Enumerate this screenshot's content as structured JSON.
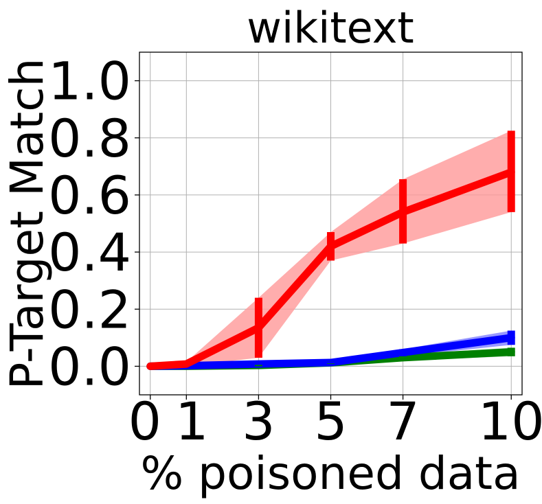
{
  "chart_data": {
    "type": "line",
    "title": "wikitext",
    "xlabel": "% poisoned data",
    "ylabel": "P-Target Match",
    "x": [
      0,
      1,
      3,
      5,
      7,
      10
    ],
    "x_tick_labels": [
      "0",
      "1",
      "3",
      "5",
      "7",
      "10"
    ],
    "y_ticks": [
      0.0,
      0.2,
      0.4,
      0.6,
      0.8,
      1.0
    ],
    "y_tick_labels": [
      "0.0",
      "0.2",
      "0.4",
      "0.6",
      "0.8",
      "1.0"
    ],
    "xlim": [
      -0.3,
      10.3
    ],
    "ylim": [
      -0.1,
      1.1
    ],
    "grid": true,
    "series": [
      {
        "name": "green",
        "color": "#008000",
        "fill_color": "#80c080",
        "values": [
          0.0,
          0.0,
          0.003,
          0.012,
          0.03,
          0.05
        ],
        "lower": [
          0.0,
          0.0,
          0.0,
          0.008,
          0.02,
          0.035
        ],
        "upper": [
          0.0,
          0.0,
          0.006,
          0.016,
          0.04,
          0.065
        ]
      },
      {
        "name": "blue",
        "color": "#0000ff",
        "fill_color": "#8080ff",
        "values": [
          0.0,
          0.002,
          0.008,
          0.013,
          0.048,
          0.1
        ],
        "lower": [
          0.0,
          0.0,
          0.005,
          0.01,
          0.035,
          0.075
        ],
        "upper": [
          0.0,
          0.004,
          0.011,
          0.016,
          0.06,
          0.125
        ]
      },
      {
        "name": "red",
        "color": "#ff0000",
        "fill_color": "#ff9999",
        "values": [
          0.0,
          0.008,
          0.135,
          0.42,
          0.54,
          0.68
        ],
        "lower": [
          0.0,
          0.0,
          0.03,
          0.37,
          0.43,
          0.54
        ],
        "upper": [
          0.0,
          0.015,
          0.24,
          0.47,
          0.655,
          0.825
        ]
      }
    ]
  }
}
